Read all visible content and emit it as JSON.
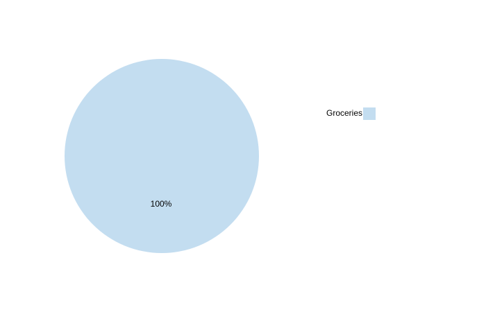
{
  "chart_data": {
    "type": "pie",
    "categories": [
      "Groceries"
    ],
    "values": [
      100
    ],
    "value_labels": [
      "100%"
    ],
    "colors": [
      "#c3ddf0"
    ],
    "legend": "right"
  }
}
